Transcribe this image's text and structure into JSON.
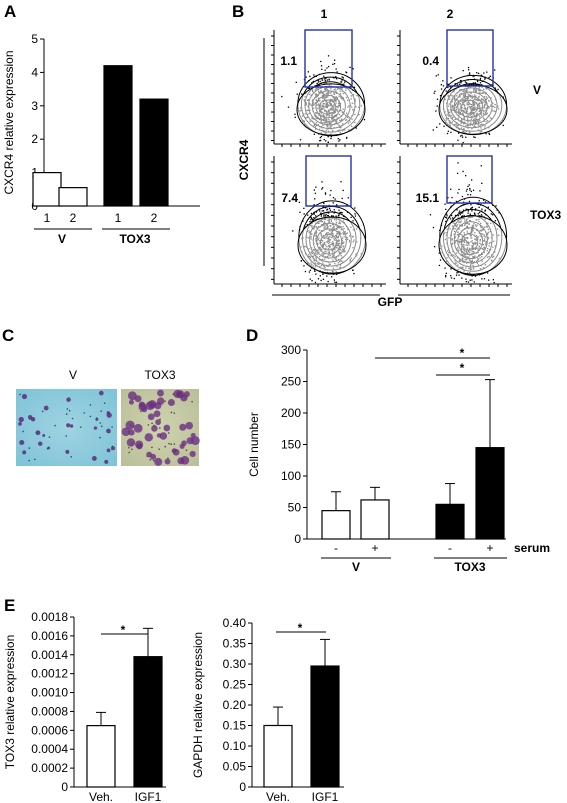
{
  "panels": {
    "A": "A",
    "B": "B",
    "C": "C",
    "D": "D",
    "E": "E"
  },
  "chart_data": [
    {
      "id": "A",
      "type": "bar",
      "ylabel": "CXCR4 relative expression",
      "ylim": [
        0,
        5
      ],
      "yticks": [
        "0",
        "1",
        "2",
        "3",
        "4",
        "5"
      ],
      "categories": [
        "1",
        "2",
        "1",
        "2"
      ],
      "groups": [
        "V",
        "TOX3"
      ],
      "values": [
        1.0,
        0.55,
        4.2,
        3.2
      ],
      "fills": [
        "#ffffff",
        "#ffffff",
        "#000000",
        "#000000"
      ]
    },
    {
      "id": "B",
      "type": "scatter",
      "columns": [
        "1",
        "2"
      ],
      "rows": [
        "V",
        "TOX3"
      ],
      "ylabel": "CXCR4",
      "xlabel": "GFP",
      "gate_percent": [
        "1.1",
        "0.4",
        "7.4",
        "15.1"
      ],
      "gate_color": "#2233aa"
    },
    {
      "id": "C",
      "type": "image",
      "labels": [
        "V",
        "TOX3"
      ]
    },
    {
      "id": "D",
      "type": "bar",
      "ylabel": "Cell number",
      "ylim": [
        0,
        300
      ],
      "yticks": [
        "0",
        "50",
        "100",
        "150",
        "200",
        "250",
        "300"
      ],
      "categories": [
        "-",
        "+",
        "-",
        "+"
      ],
      "groups": [
        "V",
        "TOX3"
      ],
      "values": [
        45,
        62,
        55,
        145
      ],
      "errors": [
        30,
        20,
        33,
        108
      ],
      "fills": [
        "#ffffff",
        "#ffffff",
        "#000000",
        "#000000"
      ],
      "row_label": "serum",
      "significance": [
        "*",
        "*"
      ]
    },
    {
      "id": "E1",
      "type": "bar",
      "ylabel": "TOX3 relative expression",
      "ylim": [
        0,
        0.0018
      ],
      "yticks": [
        "0",
        "0.0002",
        "0.0004",
        "0.0006",
        "0.0008",
        "0.0010",
        "0.0012",
        "0.0014",
        "0.0016",
        "0.0018"
      ],
      "categories": [
        "Veh.",
        "IGF1"
      ],
      "values": [
        0.00065,
        0.00138
      ],
      "errors": [
        0.00014,
        0.0003
      ],
      "fills": [
        "#ffffff",
        "#000000"
      ],
      "significance": [
        "*"
      ]
    },
    {
      "id": "E2",
      "type": "bar",
      "ylabel": "GAPDH relative expression",
      "ylim": [
        0,
        0.4
      ],
      "yticks": [
        "0",
        "0.05",
        "0.10",
        "0.15",
        "0.20",
        "0.25",
        "0.30",
        "0.35",
        "0.40"
      ],
      "categories": [
        "Veh.",
        "IGF1"
      ],
      "values": [
        0.15,
        0.295
      ],
      "errors": [
        0.045,
        0.065
      ],
      "fills": [
        "#ffffff",
        "#000000"
      ],
      "significance": [
        "*"
      ]
    }
  ]
}
